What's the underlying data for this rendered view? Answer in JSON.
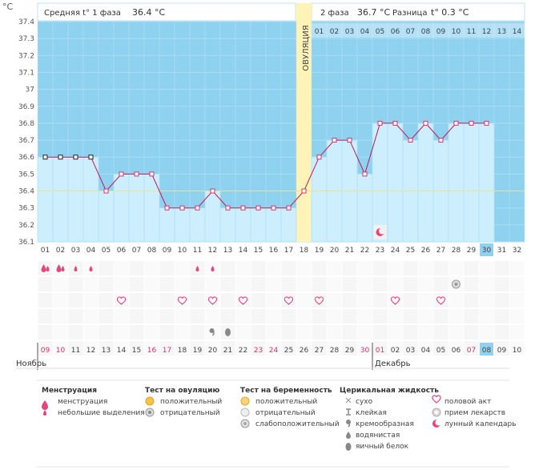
{
  "header": {
    "unit": "°C",
    "phase1_label": "Средняя t° 1 фаза",
    "phase1_value": "36.4 °C",
    "phase2_label": "2 фаза",
    "phase2_value": "36.7 °C",
    "diff_label": "Разница",
    "diff_value": "t° 0.3 °C"
  },
  "ovulation_label": "ОВУЛЯЦИЯ",
  "phase2_day_numbers": [
    "01",
    "02",
    "03",
    "04",
    "05",
    "06",
    "07",
    "08",
    "09",
    "10",
    "11",
    "12",
    "13",
    "14"
  ],
  "chart_data": {
    "type": "line",
    "ylim": [
      36.1,
      37.4
    ],
    "y_ticks": [
      "37.4",
      "37.3",
      "37.2",
      "37.1",
      "37",
      "36.9",
      "36.8",
      "36.7",
      "36.6",
      "36.5",
      "36.4",
      "36.3",
      "36.2",
      "36.1"
    ],
    "x": [
      "01",
      "02",
      "03",
      "04",
      "05",
      "06",
      "07",
      "08",
      "09",
      "10",
      "11",
      "12",
      "13",
      "14",
      "15",
      "16",
      "17",
      "18",
      "19",
      "20",
      "21",
      "22",
      "23",
      "24",
      "25",
      "26",
      "27",
      "28",
      "29",
      "30",
      "31",
      "32"
    ],
    "temps": [
      36.6,
      36.6,
      36.6,
      36.6,
      36.4,
      36.5,
      36.5,
      36.5,
      36.3,
      36.3,
      36.3,
      36.4,
      36.3,
      36.3,
      36.3,
      36.3,
      36.3,
      36.4,
      36.6,
      36.7,
      36.7,
      36.5,
      36.8,
      36.8,
      36.7,
      36.8,
      36.7,
      36.8,
      36.8,
      36.8
    ],
    "menstruation_days": 4,
    "ovulation_day": 18,
    "coverline": 36.4,
    "current_day": "30",
    "dates": [
      "09",
      "10",
      "11",
      "12",
      "13",
      "14",
      "15",
      "16",
      "17",
      "18",
      "19",
      "20",
      "21",
      "22",
      "23",
      "24",
      "25",
      "26",
      "27",
      "28",
      "29",
      "30",
      "01",
      "02",
      "03",
      "04",
      "05",
      "06",
      "07",
      "08",
      "09",
      "10"
    ],
    "red_date_indices": [
      0,
      1,
      7,
      8,
      14,
      15,
      21,
      22,
      28
    ],
    "months": [
      "Ноябрь",
      "Декабрь"
    ],
    "month_starts": [
      1,
      23
    ],
    "current_date": "08",
    "markers": {
      "menstruation_heavy": [
        1,
        2
      ],
      "menstruation_light": [
        3,
        4,
        11,
        12
      ],
      "pregnancy_negative": [
        28
      ],
      "intercourse": [
        6,
        10,
        12,
        14,
        17,
        19,
        24,
        27
      ],
      "cervical_creamy": [
        12
      ],
      "cervical_eggwhite": [
        13
      ],
      "lunar": [
        23
      ]
    }
  },
  "legend": {
    "col1": {
      "title": "Менструация",
      "items": [
        "менструация",
        "небольшие выделения"
      ]
    },
    "col2": {
      "title": "Тест на овуляцию",
      "items": [
        "положительный",
        "отрицательный"
      ]
    },
    "col3": {
      "title": "Тест на беременность",
      "items": [
        "положительный",
        "отрицательный",
        "слабоположительный"
      ]
    },
    "col4": {
      "title": "Церикальная жидкость",
      "items": [
        "сухо",
        "клейкая",
        "кремообразная",
        "водянистая",
        "яичный белок"
      ]
    },
    "col5": {
      "items": [
        "половой акт",
        "прием лекарств",
        "лунный календарь"
      ]
    }
  }
}
